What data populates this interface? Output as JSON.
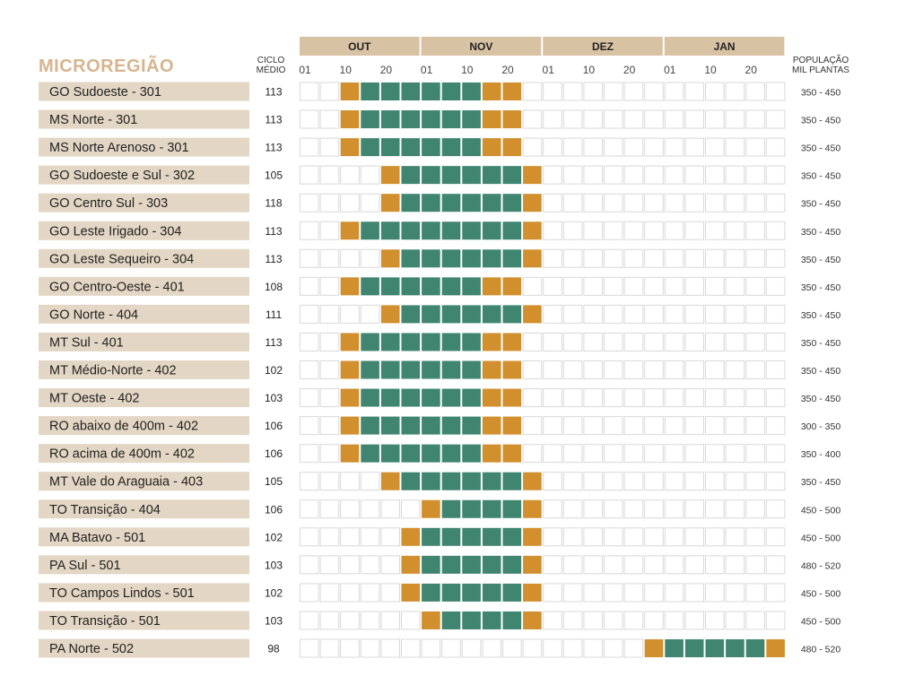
{
  "header": {
    "title": "MICROREGIÃO",
    "cycle_label_line1": "CICLO",
    "cycle_label_line2": "MÉDIO",
    "population_label_line1": "POPULAÇÃO",
    "population_label_line2": "MIL PLANTAS"
  },
  "colors": {
    "header_band": "#d8c2a4",
    "row_label_bg": "#e3d6c4",
    "cell_border": "#d8d8d8",
    "edge_fill": "#d18f2d",
    "core_fill": "#3f8570",
    "title": "#d7b48e"
  },
  "chart_data": {
    "type": "table",
    "months": [
      "OUT",
      "NOV",
      "DEZ",
      "JAN"
    ],
    "day_ticks": [
      "01",
      "10",
      "20"
    ],
    "cells_per_month": 6,
    "legend_note": "cell state: 0 = empty, 1 = edge of sowing window (orange), 2 = core sowing window (green)",
    "rows": [
      {
        "region": "GO Sudoeste - 301",
        "cycle": "113",
        "population": "350 - 450",
        "cells": [
          0,
          0,
          1,
          2,
          2,
          2,
          2,
          2,
          2,
          1,
          1,
          0,
          0,
          0,
          0,
          0,
          0,
          0,
          0,
          0,
          0,
          0,
          0,
          0
        ]
      },
      {
        "region": "MS Norte - 301",
        "cycle": "113",
        "population": "350 - 450",
        "cells": [
          0,
          0,
          1,
          2,
          2,
          2,
          2,
          2,
          2,
          1,
          1,
          0,
          0,
          0,
          0,
          0,
          0,
          0,
          0,
          0,
          0,
          0,
          0,
          0
        ]
      },
      {
        "region": "MS Norte Arenoso - 301",
        "cycle": "113",
        "population": "350 - 450",
        "cells": [
          0,
          0,
          1,
          2,
          2,
          2,
          2,
          2,
          2,
          1,
          1,
          0,
          0,
          0,
          0,
          0,
          0,
          0,
          0,
          0,
          0,
          0,
          0,
          0
        ]
      },
      {
        "region": "GO Sudoeste e Sul - 302",
        "cycle": "105",
        "population": "350 - 450",
        "cells": [
          0,
          0,
          0,
          0,
          1,
          2,
          2,
          2,
          2,
          2,
          2,
          1,
          0,
          0,
          0,
          0,
          0,
          0,
          0,
          0,
          0,
          0,
          0,
          0
        ]
      },
      {
        "region": "GO Centro Sul - 303",
        "cycle": "118",
        "population": "350 - 450",
        "cells": [
          0,
          0,
          0,
          0,
          1,
          2,
          2,
          2,
          2,
          2,
          2,
          1,
          0,
          0,
          0,
          0,
          0,
          0,
          0,
          0,
          0,
          0,
          0,
          0
        ]
      },
      {
        "region": "GO Leste Irigado - 304",
        "cycle": "113",
        "population": "350 - 450",
        "cells": [
          0,
          0,
          1,
          2,
          2,
          2,
          2,
          2,
          2,
          2,
          2,
          1,
          0,
          0,
          0,
          0,
          0,
          0,
          0,
          0,
          0,
          0,
          0,
          0
        ]
      },
      {
        "region": "GO Leste Sequeiro - 304",
        "cycle": "113",
        "population": "350 - 450",
        "cells": [
          0,
          0,
          0,
          0,
          1,
          2,
          2,
          2,
          2,
          2,
          2,
          1,
          0,
          0,
          0,
          0,
          0,
          0,
          0,
          0,
          0,
          0,
          0,
          0
        ]
      },
      {
        "region": "GO Centro-Oeste - 401",
        "cycle": "108",
        "population": "350 - 450",
        "cells": [
          0,
          0,
          1,
          2,
          2,
          2,
          2,
          2,
          2,
          1,
          1,
          0,
          0,
          0,
          0,
          0,
          0,
          0,
          0,
          0,
          0,
          0,
          0,
          0
        ]
      },
      {
        "region": "GO Norte - 404",
        "cycle": "111",
        "population": "350 - 450",
        "cells": [
          0,
          0,
          0,
          0,
          1,
          2,
          2,
          2,
          2,
          2,
          2,
          1,
          0,
          0,
          0,
          0,
          0,
          0,
          0,
          0,
          0,
          0,
          0,
          0
        ]
      },
      {
        "region": "MT Sul - 401",
        "cycle": "113",
        "population": "350 - 450",
        "cells": [
          0,
          0,
          1,
          2,
          2,
          2,
          2,
          2,
          2,
          1,
          1,
          0,
          0,
          0,
          0,
          0,
          0,
          0,
          0,
          0,
          0,
          0,
          0,
          0
        ]
      },
      {
        "region": "MT Médio-Norte - 402",
        "cycle": "102",
        "population": "350 - 450",
        "cells": [
          0,
          0,
          1,
          2,
          2,
          2,
          2,
          2,
          2,
          1,
          1,
          0,
          0,
          0,
          0,
          0,
          0,
          0,
          0,
          0,
          0,
          0,
          0,
          0
        ]
      },
      {
        "region": "MT Oeste - 402",
        "cycle": "103",
        "population": "350 - 450",
        "cells": [
          0,
          0,
          1,
          2,
          2,
          2,
          2,
          2,
          2,
          1,
          1,
          0,
          0,
          0,
          0,
          0,
          0,
          0,
          0,
          0,
          0,
          0,
          0,
          0
        ]
      },
      {
        "region": "RO abaixo de 400m - 402",
        "cycle": "106",
        "population": "300 - 350",
        "cells": [
          0,
          0,
          1,
          2,
          2,
          2,
          2,
          2,
          2,
          1,
          1,
          0,
          0,
          0,
          0,
          0,
          0,
          0,
          0,
          0,
          0,
          0,
          0,
          0
        ]
      },
      {
        "region": "RO acima de 400m - 402",
        "cycle": "106",
        "population": "350 - 400",
        "cells": [
          0,
          0,
          1,
          2,
          2,
          2,
          2,
          2,
          2,
          1,
          1,
          0,
          0,
          0,
          0,
          0,
          0,
          0,
          0,
          0,
          0,
          0,
          0,
          0
        ]
      },
      {
        "region": "MT Vale do Araguaia - 403",
        "cycle": "105",
        "population": "350 - 450",
        "cells": [
          0,
          0,
          0,
          0,
          1,
          2,
          2,
          2,
          2,
          2,
          2,
          1,
          0,
          0,
          0,
          0,
          0,
          0,
          0,
          0,
          0,
          0,
          0,
          0
        ]
      },
      {
        "region": "TO Transição - 404",
        "cycle": "106",
        "population": "450 - 500",
        "cells": [
          0,
          0,
          0,
          0,
          0,
          0,
          1,
          2,
          2,
          2,
          2,
          1,
          0,
          0,
          0,
          0,
          0,
          0,
          0,
          0,
          0,
          0,
          0,
          0
        ]
      },
      {
        "region": "MA Batavo - 501",
        "cycle": "102",
        "population": "450 - 500",
        "cells": [
          0,
          0,
          0,
          0,
          0,
          1,
          2,
          2,
          2,
          2,
          2,
          1,
          0,
          0,
          0,
          0,
          0,
          0,
          0,
          0,
          0,
          0,
          0,
          0
        ]
      },
      {
        "region": "PA Sul - 501",
        "cycle": "103",
        "population": "480 - 520",
        "cells": [
          0,
          0,
          0,
          0,
          0,
          1,
          2,
          2,
          2,
          2,
          2,
          1,
          0,
          0,
          0,
          0,
          0,
          0,
          0,
          0,
          0,
          0,
          0,
          0
        ]
      },
      {
        "region": "TO Campos Lindos - 501",
        "cycle": "102",
        "population": "450 - 500",
        "cells": [
          0,
          0,
          0,
          0,
          0,
          1,
          2,
          2,
          2,
          2,
          2,
          1,
          0,
          0,
          0,
          0,
          0,
          0,
          0,
          0,
          0,
          0,
          0,
          0
        ]
      },
      {
        "region": "TO Transição - 501",
        "cycle": "103",
        "population": "450 - 500",
        "cells": [
          0,
          0,
          0,
          0,
          0,
          0,
          1,
          2,
          2,
          2,
          2,
          1,
          0,
          0,
          0,
          0,
          0,
          0,
          0,
          0,
          0,
          0,
          0,
          0
        ]
      },
      {
        "region": "PA Norte - 502",
        "cycle": "98",
        "population": "480 - 520",
        "cells": [
          0,
          0,
          0,
          0,
          0,
          0,
          0,
          0,
          0,
          0,
          0,
          0,
          0,
          0,
          0,
          0,
          0,
          1,
          2,
          2,
          2,
          2,
          2,
          1
        ]
      }
    ]
  }
}
